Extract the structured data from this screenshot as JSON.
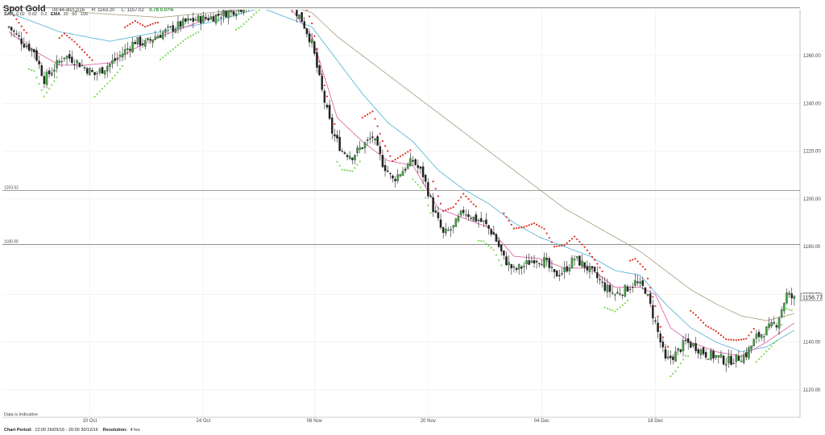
{
  "header": {
    "symbol": "Spot Gold",
    "timestamp": "08:44 30/12/16",
    "high": "H: 1163.20",
    "low": "L: 1157.02",
    "change": "0.78 0.07%"
  },
  "indicators": {
    "sar_label": "SAR",
    "sar_params": [
      "0.02",
      "0.02",
      "0.2"
    ],
    "ema_label": "EMA",
    "ema_params": [
      "20",
      "50",
      "100"
    ]
  },
  "note": "Data is Indicative",
  "footer": {
    "period_label": "Chart Period:",
    "period_value": "12:00 26/09/16 - 20:00 30/12/16",
    "resolution_label": "Resolution:",
    "resolution_value": "4 hrs"
  },
  "colors": {
    "candle": "#222222",
    "sar_up": "#7ed957",
    "sar_down": "#e03020",
    "ema20": "#d85aa0",
    "ema50": "#4fb0d0",
    "ema100": "#a89a80",
    "grid": "#ececec",
    "hline": "#666666"
  },
  "chart_data": {
    "type": "candlestick",
    "instrument": "Spot Gold",
    "resolution": "4 hrs",
    "y_ticks": [
      "1260.00",
      "1240.00",
      "1220.00",
      "1200.00",
      "1180.00",
      "1160.00",
      "1140.00",
      "1120.00"
    ],
    "x_ticks": [
      "10 Oct",
      "24 Oct",
      "06 Nov",
      "20 Nov",
      "04 Dec",
      "18 Dec"
    ],
    "ylim": [
      1112,
      1282
    ],
    "last_price": "1158.77",
    "price_tag_behind": "1160.00",
    "horizontal_lines": [
      {
        "value": 1280.0,
        "label": ""
      },
      {
        "value": 1203.52,
        "label": "1203.52"
      },
      {
        "value": 1180.9,
        "label": "1180.90"
      }
    ],
    "close_path": [
      [
        0,
        1272
      ],
      [
        6,
        1265
      ],
      [
        10,
        1262
      ],
      [
        14,
        1250
      ],
      [
        18,
        1255
      ],
      [
        22,
        1260
      ],
      [
        26,
        1258
      ],
      [
        30,
        1255
      ],
      [
        34,
        1252
      ],
      [
        38,
        1255
      ],
      [
        42,
        1258
      ],
      [
        46,
        1262
      ],
      [
        50,
        1266
      ],
      [
        54,
        1265
      ],
      [
        58,
        1268
      ],
      [
        62,
        1270
      ],
      [
        66,
        1272
      ],
      [
        70,
        1274
      ],
      [
        74,
        1275
      ],
      [
        80,
        1276
      ],
      [
        86,
        1278
      ],
      [
        92,
        1280
      ],
      [
        100,
        1285
      ],
      [
        110,
        1284
      ],
      [
        116,
        1275
      ],
      [
        120,
        1265
      ],
      [
        124,
        1245
      ],
      [
        128,
        1228
      ],
      [
        132,
        1220
      ],
      [
        136,
        1218
      ],
      [
        140,
        1222
      ],
      [
        144,
        1226
      ],
      [
        148,
        1215
      ],
      [
        152,
        1208
      ],
      [
        156,
        1212
      ],
      [
        160,
        1216
      ],
      [
        164,
        1210
      ],
      [
        168,
        1196
      ],
      [
        172,
        1185
      ],
      [
        176,
        1188
      ],
      [
        180,
        1195
      ],
      [
        184,
        1192
      ],
      [
        188,
        1190
      ],
      [
        192,
        1185
      ],
      [
        196,
        1175
      ],
      [
        200,
        1170
      ],
      [
        204,
        1172
      ],
      [
        208,
        1175
      ],
      [
        212,
        1174
      ],
      [
        216,
        1168
      ],
      [
        220,
        1170
      ],
      [
        224,
        1175
      ],
      [
        228,
        1172
      ],
      [
        232,
        1168
      ],
      [
        236,
        1163
      ],
      [
        240,
        1160
      ],
      [
        244,
        1162
      ],
      [
        248,
        1165
      ],
      [
        252,
        1162
      ],
      [
        256,
        1148
      ],
      [
        260,
        1132
      ],
      [
        264,
        1135
      ],
      [
        268,
        1140
      ],
      [
        272,
        1138
      ],
      [
        276,
        1135
      ],
      [
        280,
        1134
      ],
      [
        284,
        1132
      ],
      [
        288,
        1133
      ],
      [
        292,
        1135
      ],
      [
        296,
        1142
      ],
      [
        300,
        1145
      ],
      [
        304,
        1148
      ],
      [
        308,
        1160
      ],
      [
        311,
        1158
      ]
    ],
    "ema20": [
      [
        0,
        1270
      ],
      [
        10,
        1262
      ],
      [
        20,
        1256
      ],
      [
        30,
        1256
      ],
      [
        40,
        1257
      ],
      [
        50,
        1263
      ],
      [
        60,
        1268
      ],
      [
        70,
        1272
      ],
      [
        80,
        1276
      ],
      [
        100,
        1283
      ],
      [
        110,
        1282
      ],
      [
        120,
        1268
      ],
      [
        130,
        1234
      ],
      [
        140,
        1224
      ],
      [
        150,
        1216
      ],
      [
        160,
        1214
      ],
      [
        170,
        1196
      ],
      [
        180,
        1192
      ],
      [
        190,
        1188
      ],
      [
        200,
        1176
      ],
      [
        210,
        1175
      ],
      [
        220,
        1171
      ],
      [
        230,
        1171
      ],
      [
        240,
        1163
      ],
      [
        250,
        1163
      ],
      [
        256,
        1160
      ],
      [
        262,
        1146
      ],
      [
        270,
        1140
      ],
      [
        280,
        1136
      ],
      [
        290,
        1134
      ],
      [
        300,
        1140
      ],
      [
        311,
        1148
      ]
    ],
    "ema50": [
      [
        0,
        1278
      ],
      [
        20,
        1270
      ],
      [
        40,
        1266
      ],
      [
        60,
        1270
      ],
      [
        80,
        1274
      ],
      [
        100,
        1280
      ],
      [
        120,
        1272
      ],
      [
        130,
        1258
      ],
      [
        140,
        1244
      ],
      [
        150,
        1232
      ],
      [
        160,
        1224
      ],
      [
        170,
        1212
      ],
      [
        180,
        1204
      ],
      [
        190,
        1198
      ],
      [
        200,
        1190
      ],
      [
        210,
        1184
      ],
      [
        220,
        1180
      ],
      [
        230,
        1176
      ],
      [
        240,
        1170
      ],
      [
        250,
        1168
      ],
      [
        260,
        1156
      ],
      [
        270,
        1146
      ],
      [
        280,
        1140
      ],
      [
        290,
        1136
      ],
      [
        300,
        1138
      ],
      [
        311,
        1145
      ]
    ],
    "ema100": [
      [
        0,
        1282
      ],
      [
        30,
        1278
      ],
      [
        60,
        1276
      ],
      [
        90,
        1279
      ],
      [
        110,
        1281
      ],
      [
        120,
        1278
      ],
      [
        130,
        1268
      ],
      [
        140,
        1260
      ],
      [
        150,
        1252
      ],
      [
        160,
        1244
      ],
      [
        170,
        1236
      ],
      [
        180,
        1228
      ],
      [
        190,
        1220
      ],
      [
        200,
        1212
      ],
      [
        210,
        1204
      ],
      [
        220,
        1196
      ],
      [
        230,
        1190
      ],
      [
        240,
        1184
      ],
      [
        250,
        1178
      ],
      [
        260,
        1170
      ],
      [
        270,
        1162
      ],
      [
        280,
        1156
      ],
      [
        290,
        1151
      ],
      [
        300,
        1149
      ],
      [
        311,
        1152
      ]
    ],
    "sar": [
      {
        "from": 2,
        "to": 8,
        "side": "down"
      },
      {
        "from": 8,
        "to": 20,
        "side": "up"
      },
      {
        "from": 20,
        "to": 34,
        "side": "down"
      },
      {
        "from": 34,
        "to": 46,
        "side": "up"
      },
      {
        "from": 46,
        "to": 60,
        "side": "down"
      },
      {
        "from": 60,
        "to": 76,
        "side": "up"
      },
      {
        "from": 76,
        "to": 90,
        "side": "down"
      },
      {
        "from": 90,
        "to": 100,
        "side": "up"
      },
      {
        "from": 116,
        "to": 130,
        "side": "down"
      },
      {
        "from": 130,
        "to": 140,
        "side": "up"
      },
      {
        "from": 140,
        "to": 160,
        "side": "down"
      },
      {
        "from": 160,
        "to": 168,
        "side": "up"
      },
      {
        "from": 168,
        "to": 186,
        "side": "down"
      },
      {
        "from": 186,
        "to": 196,
        "side": "up"
      },
      {
        "from": 196,
        "to": 236,
        "side": "down"
      },
      {
        "from": 236,
        "to": 246,
        "side": "up"
      },
      {
        "from": 246,
        "to": 262,
        "side": "down"
      },
      {
        "from": 262,
        "to": 270,
        "side": "up"
      },
      {
        "from": 270,
        "to": 296,
        "side": "down"
      },
      {
        "from": 296,
        "to": 311,
        "side": "up"
      }
    ]
  }
}
